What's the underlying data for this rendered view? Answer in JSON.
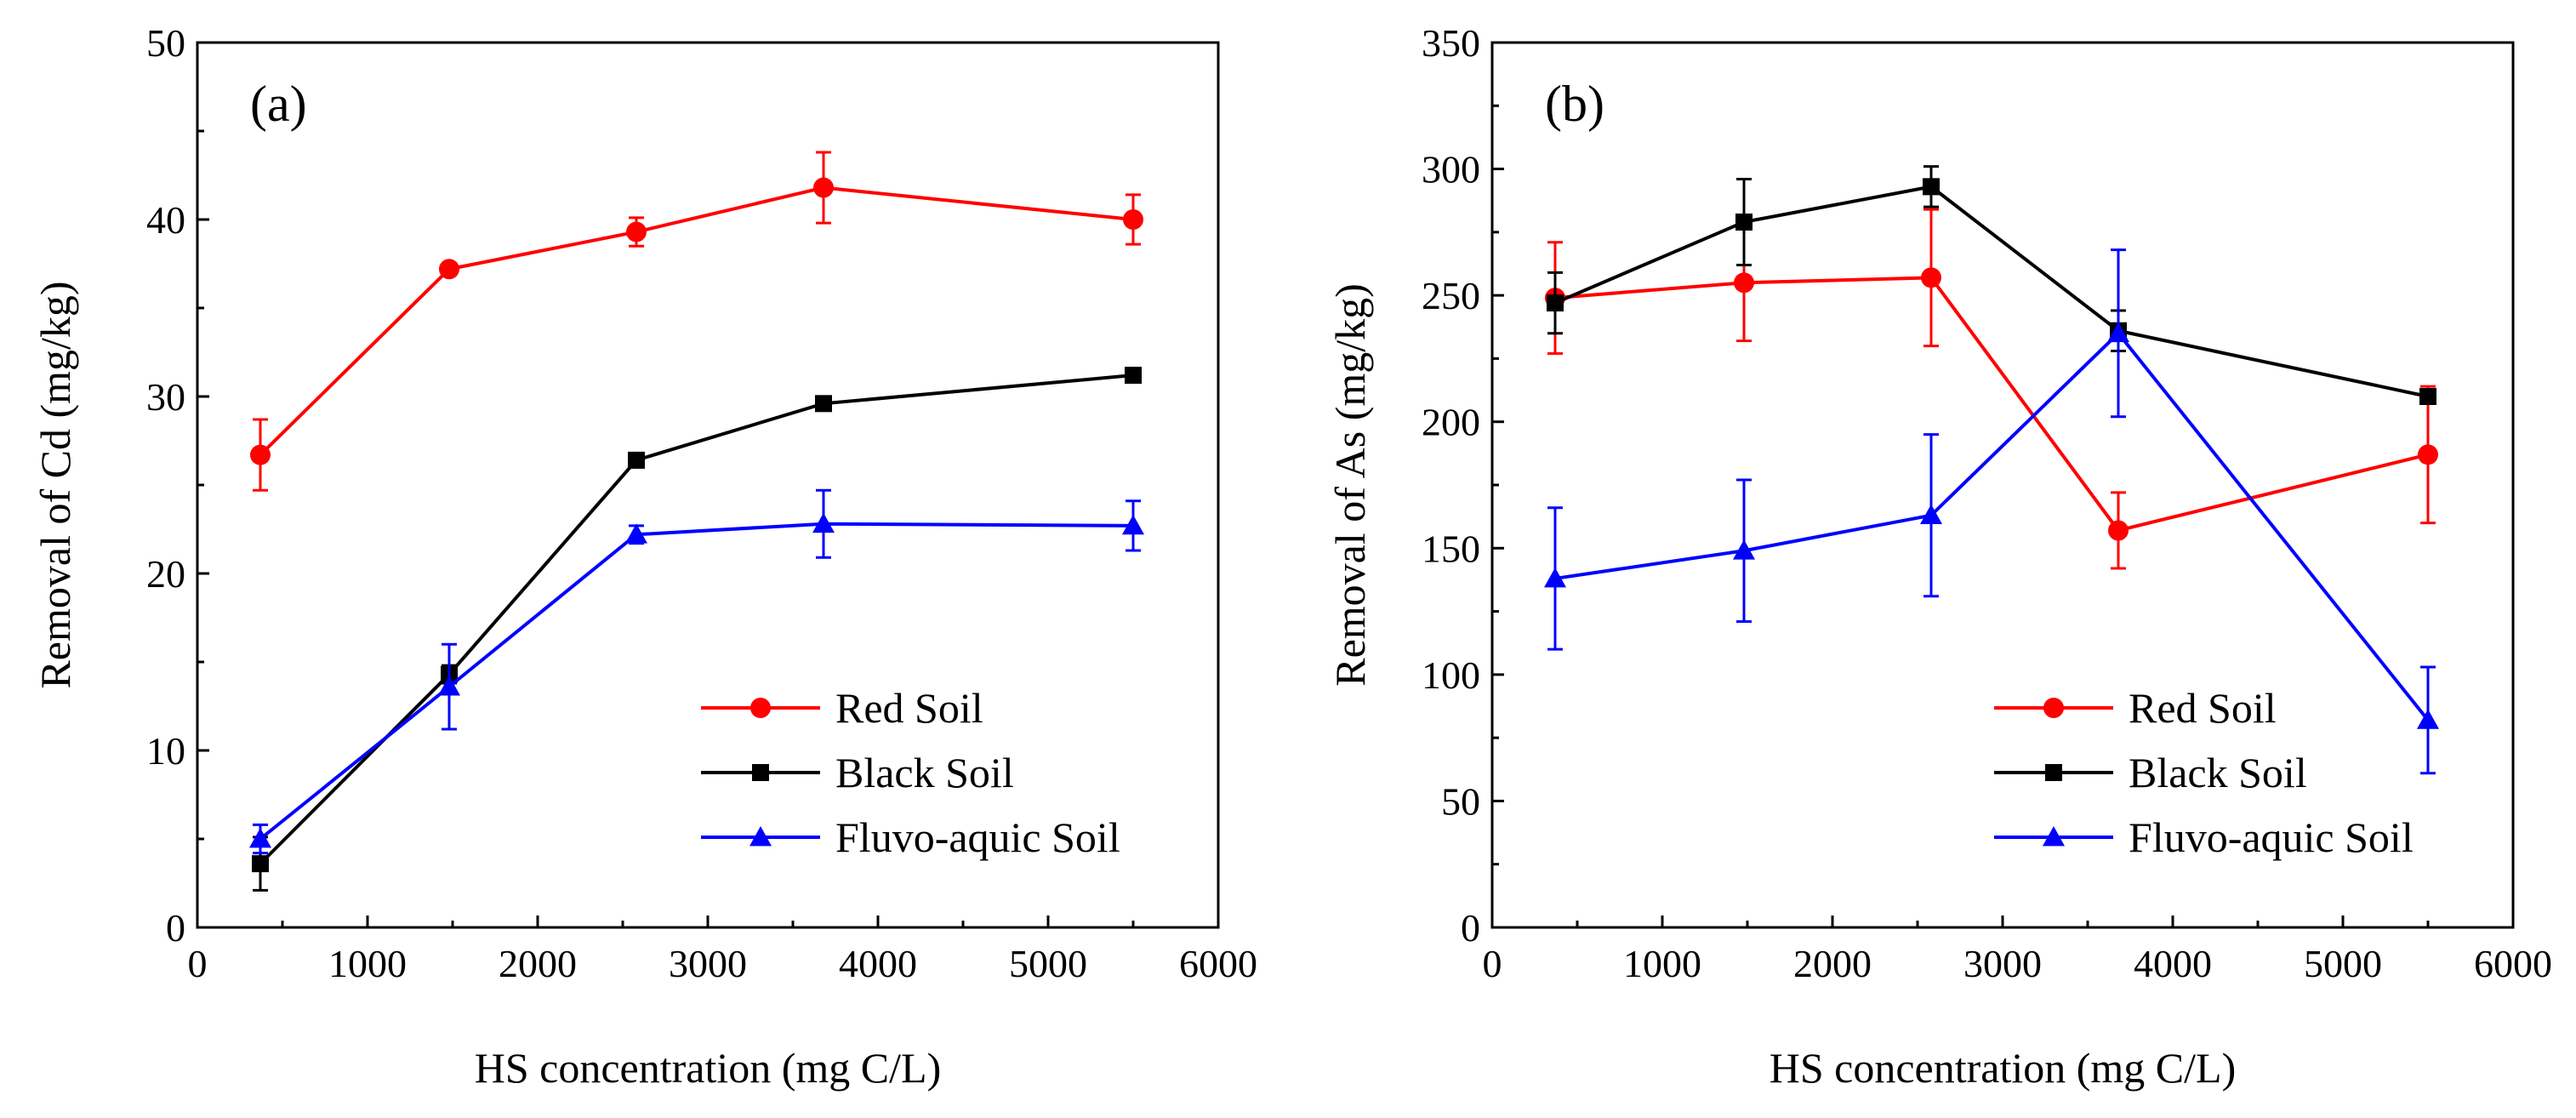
{
  "colors": {
    "red": "#ff0000",
    "black": "#000000",
    "blue": "#0000ff"
  },
  "chart_data": [
    {
      "type": "line",
      "panel_label": "(a)",
      "xlabel": "HS concentration (mg C/L)",
      "ylabel": "Removal of Cd (mg/kg)",
      "xlim": [
        0,
        6000
      ],
      "ylim": [
        0,
        50
      ],
      "x_ticks": [
        0,
        1000,
        2000,
        3000,
        4000,
        5000,
        6000
      ],
      "y_ticks": [
        0,
        10,
        20,
        30,
        40,
        50
      ],
      "legend_position": "lower-right",
      "series": [
        {
          "name": "Red Soil",
          "color": "#ff0000",
          "marker": "circle",
          "x": [
            370,
            1480,
            2580,
            3680,
            5500
          ],
          "y": [
            26.7,
            37.2,
            39.3,
            41.8,
            40.0
          ],
          "err": [
            2.0,
            0.3,
            0.8,
            2.0,
            1.4
          ]
        },
        {
          "name": "Black Soil",
          "color": "#000000",
          "marker": "square",
          "x": [
            370,
            1480,
            2580,
            3680,
            5500
          ],
          "y": [
            3.6,
            14.3,
            26.4,
            29.6,
            31.2
          ],
          "err": [
            1.5,
            0.5,
            0.4,
            0.3,
            0.3
          ]
        },
        {
          "name": "Fluvo-aquic Soil",
          "color": "#0000ff",
          "marker": "triangle",
          "x": [
            370,
            1480,
            2580,
            3680,
            5500
          ],
          "y": [
            5.0,
            13.6,
            22.2,
            22.8,
            22.7
          ],
          "err": [
            0.8,
            2.4,
            0.5,
            1.9,
            1.4
          ]
        }
      ]
    },
    {
      "type": "line",
      "panel_label": "(b)",
      "xlabel": "HS concentration (mg C/L)",
      "ylabel": "Removal of As (mg/kg)",
      "xlim": [
        0,
        6000
      ],
      "ylim": [
        0,
        350
      ],
      "x_ticks": [
        0,
        1000,
        2000,
        3000,
        4000,
        5000,
        6000
      ],
      "y_ticks": [
        0,
        50,
        100,
        150,
        200,
        250,
        300,
        350
      ],
      "legend_position": "lower-right",
      "series": [
        {
          "name": "Red Soil",
          "color": "#ff0000",
          "marker": "circle",
          "x": [
            370,
            1480,
            2580,
            3680,
            5500
          ],
          "y": [
            249,
            255,
            257,
            157,
            187
          ],
          "err": [
            22,
            23,
            27,
            15,
            27
          ]
        },
        {
          "name": "Black Soil",
          "color": "#000000",
          "marker": "square",
          "x": [
            370,
            1480,
            2580,
            3680,
            5500
          ],
          "y": [
            247,
            279,
            293,
            236,
            210
          ],
          "err": [
            12,
            17,
            8,
            8,
            2
          ]
        },
        {
          "name": "Fluvo-aquic Soil",
          "color": "#0000ff",
          "marker": "triangle",
          "x": [
            370,
            1480,
            2580,
            3680,
            5500
          ],
          "y": [
            138,
            149,
            163,
            235,
            82
          ],
          "err": [
            28,
            28,
            32,
            33,
            21
          ]
        }
      ]
    }
  ]
}
